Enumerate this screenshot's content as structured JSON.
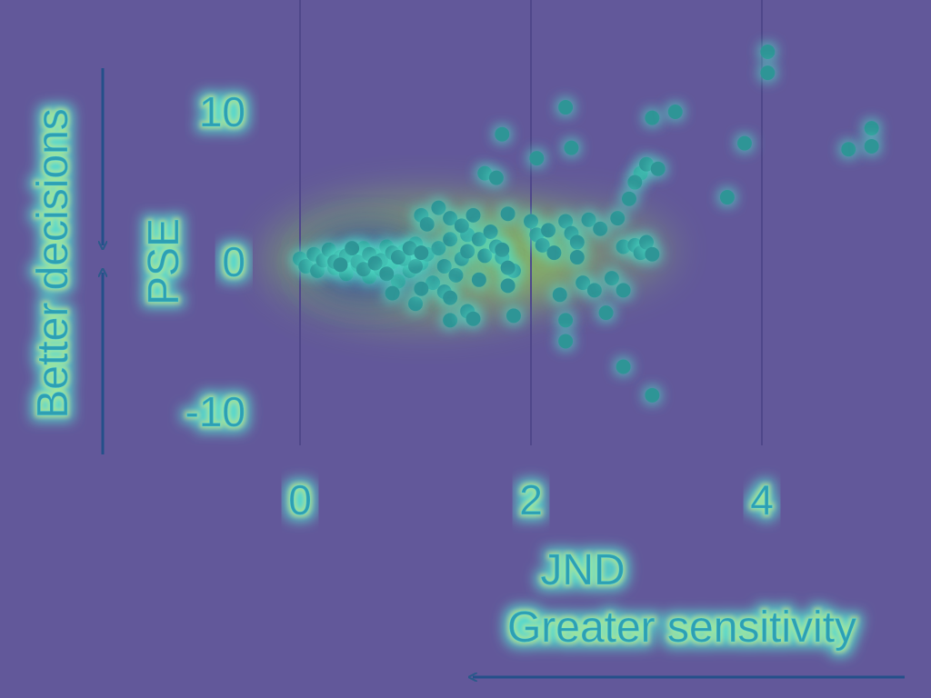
{
  "chart_data": {
    "type": "scatter",
    "title": "",
    "xlabel": "JND",
    "ylabel": "PSE",
    "xlim": [
      -0.3,
      5.2
    ],
    "ylim": [
      -13,
      14.5
    ],
    "xticks": [
      "0",
      "2",
      "4"
    ],
    "yticks": [
      "10",
      "0",
      "-10"
    ],
    "xtick_values": [
      0,
      2,
      4
    ],
    "ytick_values": [
      10,
      0,
      -10
    ],
    "grid": "vertical lines at x ticks; horizontal lines at y ticks",
    "annotations": {
      "y_direction": "Better decisions",
      "x_direction": "Greater sensitivity"
    },
    "series": [
      {
        "points": [
          [
            0.0,
            0.2
          ],
          [
            0.05,
            -0.3
          ],
          [
            0.12,
            0.5
          ],
          [
            0.15,
            -0.6
          ],
          [
            0.2,
            0.1
          ],
          [
            0.25,
            0.8
          ],
          [
            0.3,
            -0.4
          ],
          [
            0.35,
            0.3
          ],
          [
            0.4,
            -0.8
          ],
          [
            0.45,
            0.6
          ],
          [
            0.5,
            -0.2
          ],
          [
            0.55,
            0.9
          ],
          [
            0.6,
            -1.0
          ],
          [
            0.65,
            0.4
          ],
          [
            0.7,
            -0.5
          ],
          [
            0.75,
            1.0
          ],
          [
            0.8,
            0.0
          ],
          [
            0.85,
            -1.3
          ],
          [
            0.9,
            0.7
          ],
          [
            0.95,
            -0.6
          ],
          [
            1.0,
            1.2
          ],
          [
            1.05,
            -0.1
          ],
          [
            1.1,
            0.5
          ],
          [
            1.15,
            -1.4
          ],
          [
            1.2,
            0.9
          ],
          [
            1.25,
            -0.3
          ],
          [
            1.3,
            1.5
          ],
          [
            1.35,
            -0.9
          ],
          [
            1.4,
            0.2
          ],
          [
            1.45,
            1.8
          ],
          [
            0.3,
            0.0
          ],
          [
            0.4,
            0.4
          ],
          [
            0.5,
            0.0
          ],
          [
            0.6,
            0.5
          ],
          [
            0.7,
            0.1
          ],
          [
            0.8,
            0.6
          ],
          [
            0.9,
            0.2
          ],
          [
            1.0,
            -0.3
          ],
          [
            0.55,
            -0.5
          ],
          [
            0.65,
            -0.1
          ],
          [
            0.45,
            0.9
          ],
          [
            0.35,
            -0.2
          ],
          [
            0.75,
            -0.8
          ],
          [
            0.85,
            0.3
          ],
          [
            0.95,
            0.9
          ],
          [
            1.05,
            0.6
          ],
          [
            0.8,
            -2.1
          ],
          [
            1.0,
            -2.8
          ],
          [
            1.05,
            -1.8
          ],
          [
            1.25,
            -2.0
          ],
          [
            1.3,
            -2.4
          ],
          [
            1.3,
            -3.9
          ],
          [
            1.45,
            -3.3
          ],
          [
            1.5,
            -3.8
          ],
          [
            1.55,
            -1.2
          ],
          [
            1.05,
            3.1
          ],
          [
            1.1,
            2.5
          ],
          [
            1.2,
            3.6
          ],
          [
            1.3,
            2.9
          ],
          [
            1.4,
            2.4
          ],
          [
            1.45,
            0.7
          ],
          [
            1.5,
            3.1
          ],
          [
            1.55,
            1.5
          ],
          [
            1.6,
            0.4
          ],
          [
            1.65,
            2.0
          ],
          [
            1.7,
            1.0
          ],
          [
            1.75,
            0.3
          ],
          [
            1.8,
            3.2
          ],
          [
            1.85,
            -0.6
          ],
          [
            1.75,
            8.5
          ],
          [
            1.6,
            5.9
          ],
          [
            1.7,
            5.6
          ],
          [
            1.75,
            0.8
          ],
          [
            1.8,
            -0.4
          ],
          [
            1.8,
            -1.6
          ],
          [
            1.85,
            -3.6
          ],
          [
            2.0,
            2.7
          ],
          [
            2.05,
            1.8
          ],
          [
            2.1,
            1.1
          ],
          [
            2.15,
            2.1
          ],
          [
            2.2,
            0.6
          ],
          [
            2.25,
            -2.2
          ],
          [
            2.3,
            2.7
          ],
          [
            2.35,
            1.9
          ],
          [
            2.4,
            1.3
          ],
          [
            2.4,
            0.3
          ],
          [
            2.45,
            -1.4
          ],
          [
            2.5,
            2.8
          ],
          [
            2.55,
            -1.9
          ],
          [
            2.6,
            2.2
          ],
          [
            2.65,
            -3.4
          ],
          [
            2.7,
            -1.1
          ],
          [
            2.75,
            2.9
          ],
          [
            2.8,
            -1.9
          ],
          [
            2.3,
            -3.9
          ],
          [
            2.3,
            -5.3
          ],
          [
            2.05,
            6.9
          ],
          [
            2.3,
            10.3
          ],
          [
            2.35,
            7.6
          ],
          [
            2.8,
            1.0
          ],
          [
            2.9,
            1.1
          ],
          [
            2.95,
            0.6
          ],
          [
            3.0,
            1.3
          ],
          [
            3.05,
            0.5
          ],
          [
            2.95,
            5.9
          ],
          [
            2.9,
            5.3
          ],
          [
            2.85,
            4.2
          ],
          [
            3.0,
            6.5
          ],
          [
            3.1,
            6.2
          ],
          [
            3.05,
            9.6
          ],
          [
            3.25,
            10.0
          ],
          [
            2.8,
            -7.0
          ],
          [
            3.05,
            -8.9
          ],
          [
            3.7,
            4.3
          ],
          [
            3.85,
            7.9
          ],
          [
            4.05,
            14.0
          ],
          [
            4.05,
            12.6
          ],
          [
            4.75,
            7.5
          ],
          [
            4.95,
            8.9
          ],
          [
            4.95,
            7.7
          ]
        ]
      }
    ]
  }
}
